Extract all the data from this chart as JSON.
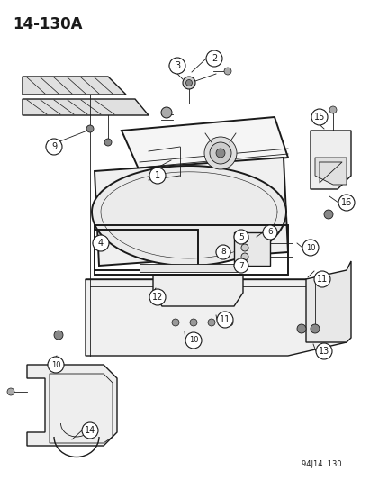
{
  "title": "14-130A",
  "footer": "94J14  130",
  "bg": "#ffffff",
  "lc": "#1a1a1a",
  "figsize": [
    4.21,
    5.33
  ],
  "dpi": 100,
  "xlim": [
    0,
    421
  ],
  "ylim": [
    0,
    533
  ]
}
